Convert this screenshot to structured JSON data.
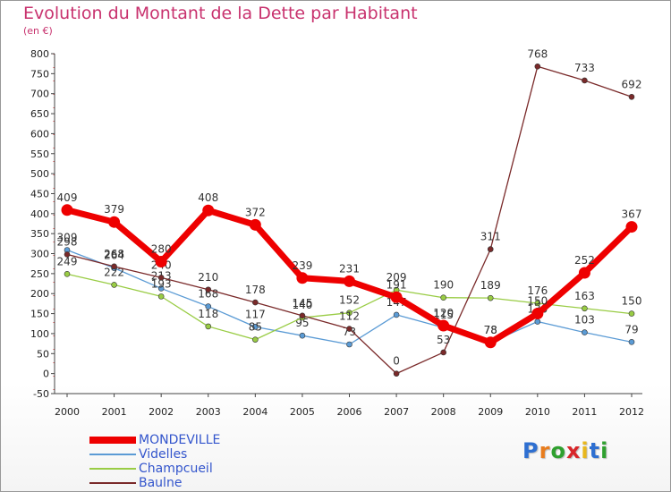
{
  "header": {
    "title": "Evolution du Montant de la Dette par Habitant",
    "subtitle": "(en €)"
  },
  "logo": {
    "letters": [
      "P",
      "r",
      "o",
      "x",
      "i",
      "t",
      "i"
    ],
    "colors": [
      "#2e6fd1",
      "#e87d1e",
      "#2fa02f",
      "#d8262a",
      "#e8b71d",
      "#2e6fd1",
      "#2fa02f"
    ]
  },
  "chart_data": {
    "type": "line",
    "title": "Evolution du Montant de la Dette par Habitant",
    "subtitle": "(en €)",
    "x": [
      "2000",
      "2001",
      "2002",
      "2003",
      "2004",
      "2005",
      "2006",
      "2007",
      "2008",
      "2009",
      "2010",
      "2011",
      "2012"
    ],
    "ylim": [
      -50,
      800
    ],
    "yticks": [
      -50,
      0,
      50,
      100,
      150,
      200,
      250,
      300,
      350,
      400,
      450,
      500,
      550,
      600,
      650,
      700,
      750,
      800
    ],
    "grid": false,
    "legend_position": "bottom-left",
    "series": [
      {
        "name": "Videlles",
        "color": "#5b9bd5",
        "values": [
          309,
          264,
          213,
          168,
          117,
          95,
          73,
          147,
          115,
          78,
          130,
          103,
          79
        ],
        "labels": [
          "309",
          "264",
          "213",
          "168",
          "117",
          "95",
          "73",
          "147",
          "115",
          "78",
          "130",
          "103",
          "79"
        ]
      },
      {
        "name": "Champcueil",
        "color": "#99cc44",
        "values": [
          249,
          222,
          193,
          118,
          85,
          140,
          152,
          209,
          190,
          189,
          176,
          163,
          150
        ],
        "labels": [
          "249",
          "222",
          "193",
          "118",
          "85",
          "140",
          "152",
          "209",
          "190",
          "189",
          "176",
          "163",
          "150"
        ]
      },
      {
        "name": "Baulne",
        "color": "#7a2a2a",
        "values": [
          298,
          268,
          240,
          210,
          178,
          145,
          112,
          0,
          53,
          311,
          768,
          733,
          692
        ],
        "labels": [
          "298",
          "268",
          "240",
          "210",
          "178",
          "145",
          "112",
          "0",
          "53",
          "311",
          "768",
          "733",
          "692"
        ]
      },
      {
        "name": "MONDEVILLE",
        "color": "#ee0000",
        "values": [
          409,
          379,
          280,
          408,
          372,
          239,
          231,
          191,
          120,
          78,
          150,
          252,
          367
        ],
        "labels": [
          "409",
          "379",
          "280",
          "408",
          "372",
          "239",
          "231",
          "191",
          "120",
          "78",
          "150",
          "252",
          "367"
        ]
      }
    ],
    "legend": [
      "MONDEVILLE",
      "Videlles",
      "Champcueil",
      "Baulne"
    ]
  }
}
